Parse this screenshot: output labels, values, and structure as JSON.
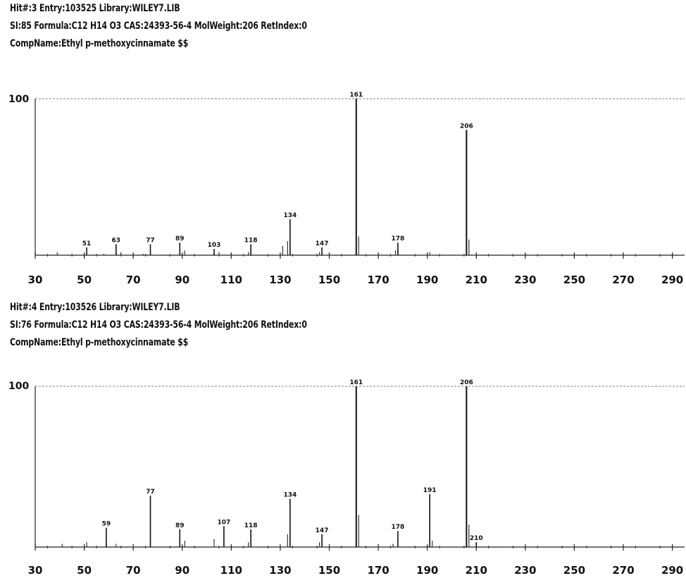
{
  "spectra": [
    {
      "header": {
        "line1": "Hit#:3  Entry:103525  Library:WILEY7.LIB",
        "line2": "SI:85  Formula:C12 H14 O3  CAS:24393-56-4  MolWeight:206  RetIndex:0",
        "line3": "CompName:Ethyl p-methoxycinnamate $$"
      }
    },
    {
      "header": {
        "line1": "Hit#:4  Entry:103526  Library:WILEY7.LIB",
        "line2": "SI:76  Formula:C12 H14 O3  CAS:24393-56-4  MolWeight:206  RetIndex:0",
        "line3": "CompName:Ethyl p-methoxycinnamate $$"
      }
    }
  ],
  "chart_data": [
    {
      "type": "bar",
      "ylim": [
        0,
        100
      ],
      "y_tick_label": "100",
      "xlim": [
        30,
        295
      ],
      "x_ticks": [
        30,
        50,
        70,
        90,
        110,
        130,
        150,
        170,
        190,
        210,
        230,
        250,
        270,
        290
      ],
      "peaks": [
        {
          "mz": 51,
          "intensity": 5,
          "label": "51"
        },
        {
          "mz": 63,
          "intensity": 7,
          "label": "63"
        },
        {
          "mz": 77,
          "intensity": 7,
          "label": "77"
        },
        {
          "mz": 89,
          "intensity": 8,
          "label": "89"
        },
        {
          "mz": 103,
          "intensity": 4,
          "label": "103"
        },
        {
          "mz": 118,
          "intensity": 7,
          "label": "118"
        },
        {
          "mz": 134,
          "intensity": 23,
          "label": "134"
        },
        {
          "mz": 147,
          "intensity": 5,
          "label": "147"
        },
        {
          "mz": 161,
          "intensity": 100,
          "label": "161"
        },
        {
          "mz": 178,
          "intensity": 8,
          "label": "178"
        },
        {
          "mz": 206,
          "intensity": 80,
          "label": "206"
        }
      ],
      "minor_peaks": [
        {
          "mz": 39,
          "intensity": 2
        },
        {
          "mz": 45,
          "intensity": 1
        },
        {
          "mz": 58,
          "intensity": 1
        },
        {
          "mz": 65,
          "intensity": 2
        },
        {
          "mz": 74,
          "intensity": 1
        },
        {
          "mz": 91,
          "intensity": 3
        },
        {
          "mz": 105,
          "intensity": 2
        },
        {
          "mz": 117,
          "intensity": 2
        },
        {
          "mz": 131,
          "intensity": 6
        },
        {
          "mz": 133,
          "intensity": 9
        },
        {
          "mz": 146,
          "intensity": 2
        },
        {
          "mz": 162,
          "intensity": 12
        },
        {
          "mz": 177,
          "intensity": 3
        },
        {
          "mz": 191,
          "intensity": 2
        },
        {
          "mz": 207,
          "intensity": 10
        }
      ]
    },
    {
      "type": "bar",
      "ylim": [
        0,
        100
      ],
      "y_tick_label": "100",
      "xlim": [
        30,
        295
      ],
      "x_ticks": [
        30,
        50,
        70,
        90,
        110,
        130,
        150,
        170,
        190,
        210,
        230,
        250,
        270,
        290
      ],
      "peaks": [
        {
          "mz": 59,
          "intensity": 12,
          "label": "59"
        },
        {
          "mz": 77,
          "intensity": 32,
          "label": "77"
        },
        {
          "mz": 89,
          "intensity": 11,
          "label": "89"
        },
        {
          "mz": 107,
          "intensity": 13,
          "label": "107"
        },
        {
          "mz": 118,
          "intensity": 11,
          "label": "118"
        },
        {
          "mz": 134,
          "intensity": 30,
          "label": "134"
        },
        {
          "mz": 147,
          "intensity": 8,
          "label": "147"
        },
        {
          "mz": 161,
          "intensity": 100,
          "label": "161"
        },
        {
          "mz": 178,
          "intensity": 10,
          "label": "178"
        },
        {
          "mz": 191,
          "intensity": 33,
          "label": "191"
        },
        {
          "mz": 206,
          "intensity": 100,
          "label": "206"
        },
        {
          "mz": 210,
          "intensity": 3,
          "label": "210"
        }
      ],
      "minor_peaks": [
        {
          "mz": 41,
          "intensity": 2
        },
        {
          "mz": 51,
          "intensity": 3
        },
        {
          "mz": 63,
          "intensity": 2
        },
        {
          "mz": 91,
          "intensity": 4
        },
        {
          "mz": 103,
          "intensity": 5
        },
        {
          "mz": 117,
          "intensity": 3
        },
        {
          "mz": 133,
          "intensity": 8
        },
        {
          "mz": 146,
          "intensity": 3
        },
        {
          "mz": 162,
          "intensity": 20
        },
        {
          "mz": 176,
          "intensity": 2
        },
        {
          "mz": 192,
          "intensity": 4
        },
        {
          "mz": 207,
          "intensity": 14
        }
      ]
    }
  ]
}
